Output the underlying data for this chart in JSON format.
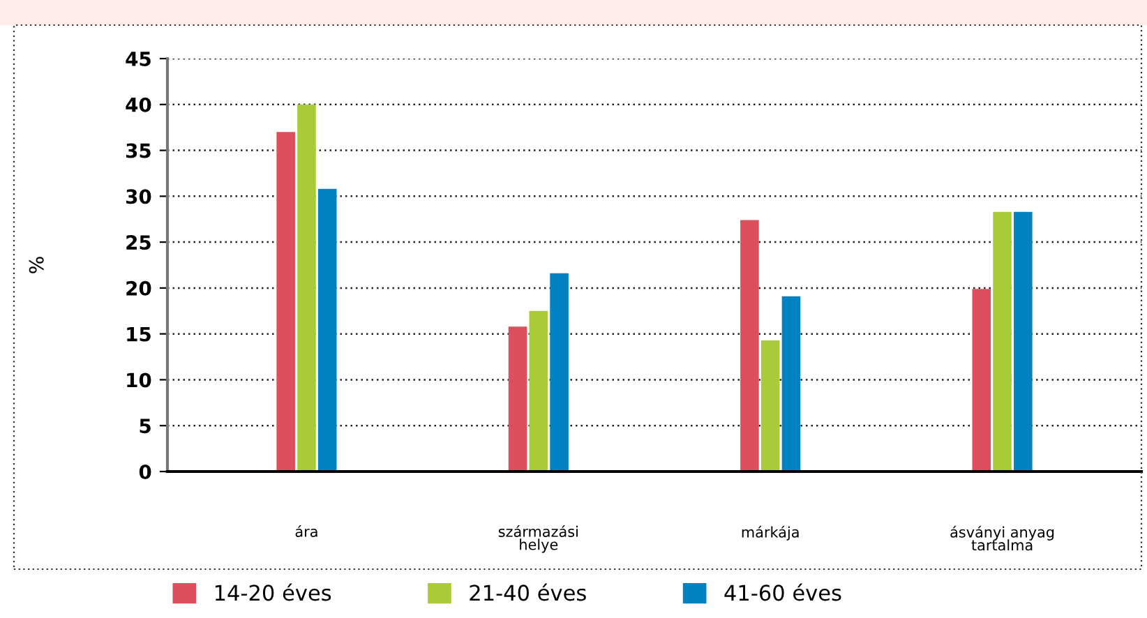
{
  "chart_data": {
    "type": "bar",
    "ylabel": "%",
    "categories": [
      "ára",
      "származási\nhelye",
      "márkája",
      "ásványi anyag\ntartalma"
    ],
    "series": [
      {
        "name": "14-20 éves",
        "color": "#de4f5d",
        "values": [
          37.0,
          15.8,
          27.4,
          19.9
        ]
      },
      {
        "name": "21-40 éves",
        "color": "#a9cb38",
        "values": [
          40.0,
          17.5,
          14.3,
          28.3
        ]
      },
      {
        "name": "41-60 éves",
        "color": "#0083c0",
        "values": [
          30.8,
          21.6,
          19.1,
          28.3
        ]
      }
    ],
    "ylim": [
      0,
      45
    ],
    "yticks": [
      0,
      5,
      10,
      15,
      20,
      25,
      30,
      35,
      40,
      45
    ],
    "grid": "y",
    "legend": "bottom"
  }
}
